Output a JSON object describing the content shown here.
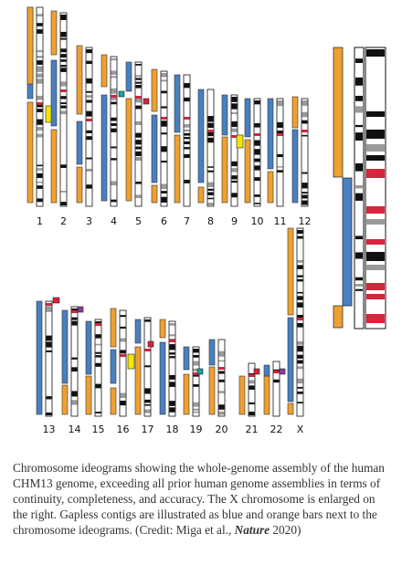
{
  "figure": {
    "chromosomes_top": [
      "1",
      "2",
      "3",
      "4",
      "5",
      "6",
      "7",
      "8",
      "9",
      "10",
      "11",
      "12"
    ],
    "chromosomes_bottom": [
      "13",
      "14",
      "15",
      "16",
      "17",
      "18",
      "19",
      "20",
      "21",
      "22",
      "X"
    ],
    "colors": {
      "contig_blue": "#4a7fc1",
      "contig_orange": "#f0a030",
      "band_dark": "#111111",
      "band_gray": "#9a9a9a",
      "centromere_red": "#d8243c",
      "marker_yellow": "#f5e600",
      "marker_teal": "#1aa0a0",
      "marker_purple": "#8a3c9c"
    }
  },
  "caption": {
    "text_main": "Chromosome ideograms showing the whole-genome assembly of the human CHM13 genome, exceeding all prior human genome assemblies in terms of continuity, completeness, and accuracy. The X chromosome is enlarged on the right. Gapless contigs are illustrated as blue and orange bars next to the chromosome ideograms. (Credit: Miga et al., ",
    "journal": "Nature",
    "year": " 2020)"
  }
}
